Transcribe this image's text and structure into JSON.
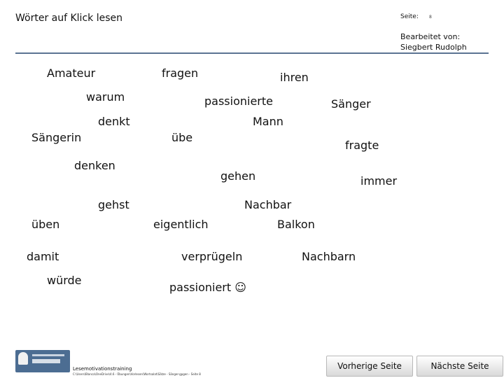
{
  "header": {
    "title": "Wörter auf Klick lesen",
    "page_label": "Seite:",
    "page_number": "8",
    "editor_label": "Bearbeitet von:",
    "editor_name": "Siegbert Rudolph"
  },
  "words": [
    "Amateur",
    "fragen",
    "ihren",
    "warum",
    "passionierte",
    "Sänger",
    "denkt",
    "Mann",
    "Sängerin",
    "übe",
    "fragte",
    "denken",
    "gehen",
    "immer",
    "gehst",
    "Nachbar",
    "üben",
    "eigentlich",
    "Balkon",
    "damit",
    "verprügeln",
    "Nachbarn",
    "würde",
    "passioniert ☺"
  ],
  "footer": {
    "training_label": "Lesemotivationstraining",
    "path": "C:\\Users\\Blanca\\OneDrive\\4.6 - Übungen\\Vorlesen\\Wortsalat\\Sätze - Sänger-gpgen - Seite 8",
    "logo_icon": "chef-logo-icon",
    "prev_label": "Vorherige Seite",
    "next_label": "Nächste Seite"
  }
}
